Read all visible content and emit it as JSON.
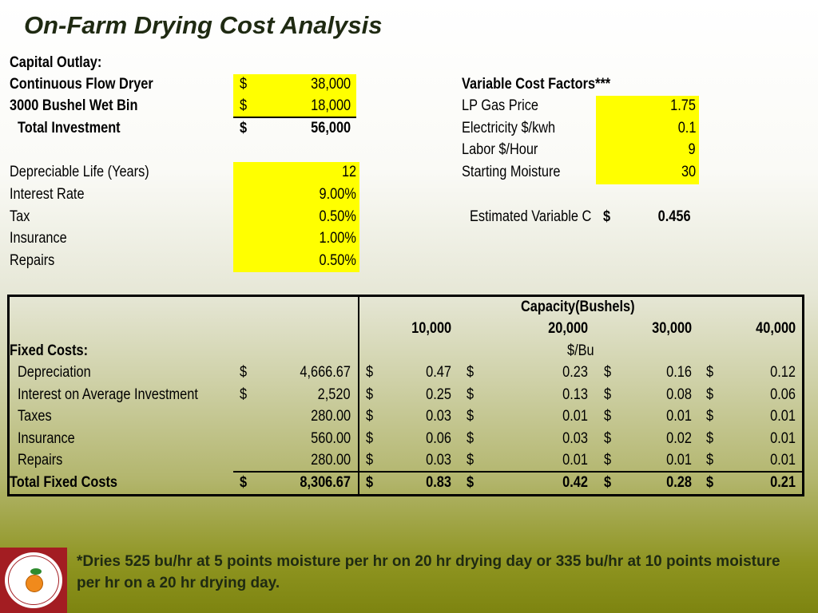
{
  "title": "On-Farm Drying Cost Analysis",
  "capital": {
    "heading": "Capital Outlay:",
    "rows": [
      {
        "label": "Continuous Flow Dryer",
        "currency": "$",
        "value": "38,000"
      },
      {
        "label": "3000 Bushel Wet Bin",
        "currency": "$",
        "value": "18,000"
      },
      {
        "label": "Total Investment",
        "currency": "$",
        "value": "56,000"
      }
    ]
  },
  "parameters": [
    {
      "label": "Depreciable Life (Years)",
      "value": "12"
    },
    {
      "label": "Interest Rate",
      "value": "9.00%"
    },
    {
      "label": "Tax",
      "value": "0.50%"
    },
    {
      "label": "Insurance",
      "value": "1.00%"
    },
    {
      "label": "Repairs",
      "value": "0.50%"
    }
  ],
  "variable": {
    "heading": "Variable Cost Factors***",
    "rows": [
      {
        "label": "LP Gas Price",
        "value": "1.75"
      },
      {
        "label": "Electricity $/kwh",
        "value": "0.1"
      },
      {
        "label": "Labor $/Hour",
        "value": "9"
      },
      {
        "label": "Starting Moisture",
        "value": "30"
      }
    ],
    "estimate_label": "Estimated Variable C",
    "estimate_currency": "$",
    "estimate_value": "0.456"
  },
  "table": {
    "capacity_header": "Capacity(Bushels)",
    "columns": [
      "10,000",
      "20,000",
      "30,000",
      "40,000"
    ],
    "unit_label": "$/Bu",
    "fixed_heading": "Fixed Costs:",
    "rows": [
      {
        "label": "Depreciation",
        "currency": "$",
        "total": "4,666.67",
        "cells": [
          "0.47",
          "0.23",
          "0.16",
          "0.12"
        ],
        "cur": [
          "$",
          "$",
          "$",
          "$"
        ]
      },
      {
        "label": "Interest on Average Investment",
        "currency": "$",
        "total": "2,520",
        "cells": [
          "0.25",
          "0.13",
          "0.08",
          "0.06"
        ],
        "cur": [
          "$",
          "$",
          "$",
          "$"
        ]
      },
      {
        "label": "Taxes",
        "currency": "",
        "total": "280.00",
        "cells": [
          "0.03",
          "0.01",
          "0.01",
          "0.01"
        ],
        "cur": [
          "$",
          "$",
          "$",
          "$"
        ]
      },
      {
        "label": "Insurance",
        "currency": "",
        "total": "560.00",
        "cells": [
          "0.06",
          "0.03",
          "0.02",
          "0.01"
        ],
        "cur": [
          "$",
          "$",
          "$",
          "$"
        ]
      },
      {
        "label": "Repairs",
        "currency": "",
        "total": "280.00",
        "cells": [
          "0.03",
          "0.01",
          "0.01",
          "0.01"
        ],
        "cur": [
          "$",
          "$",
          "$",
          "$"
        ]
      }
    ],
    "total_row": {
      "label": "Total Fixed Costs",
      "currency": "$",
      "total": "8,306.67",
      "cells": [
        "0.83",
        "0.42",
        "0.28",
        "0.21"
      ],
      "cur": [
        "$",
        "$",
        "$",
        "$"
      ]
    }
  },
  "footnote": "*Dries 525 bu/hr at 5 points moisture per hr on 20 hr drying day or 335 bu/hr at 10 points moisture per hr on a 20 hr drying day.",
  "logo": {
    "icon": "orange-fruit-seal-icon",
    "text": "Center for Agribusiness and Economic Development",
    "colors": {
      "border": "#a31d22",
      "fruit": "#f08a1c"
    }
  }
}
